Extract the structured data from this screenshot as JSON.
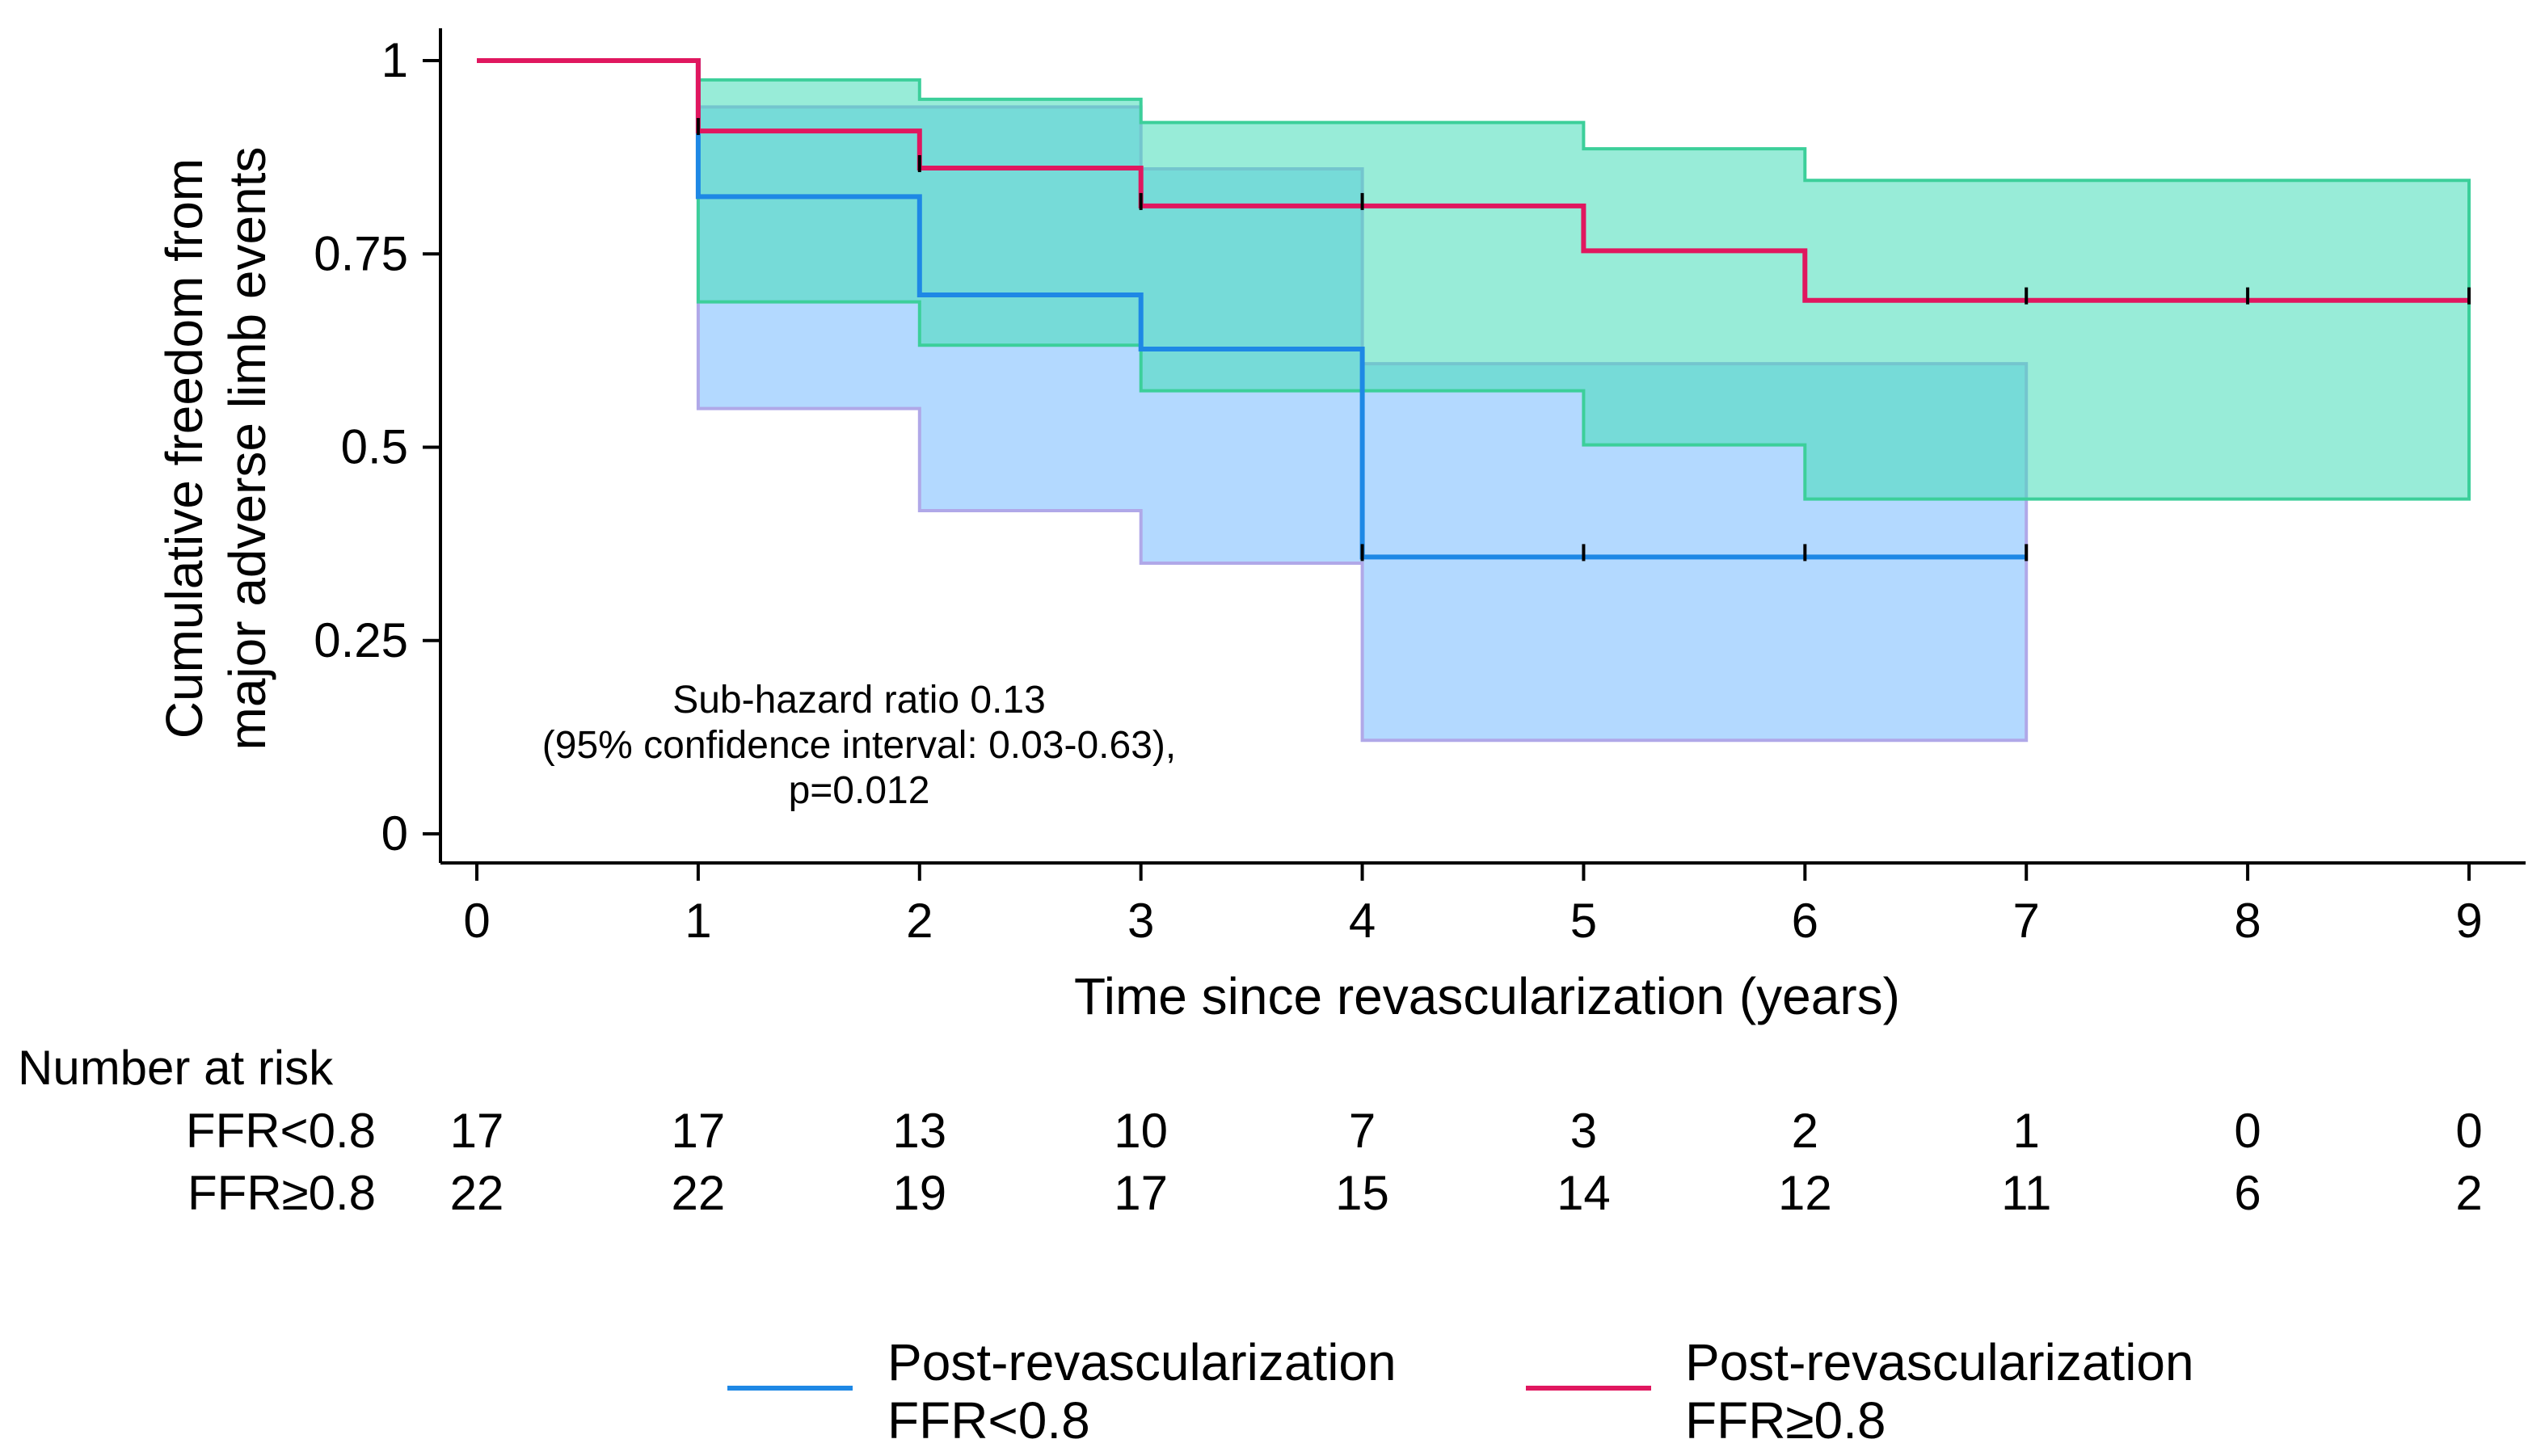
{
  "chart_data": {
    "type": "line",
    "subtype": "kaplan-meier step curves with confidence bands",
    "ylabel_lines": [
      "Cumulative freedom from",
      "major adverse limb events"
    ],
    "xlabel": "Time since revascularization (years)",
    "xlim": [
      0,
      9
    ],
    "ylim": [
      0,
      1
    ],
    "x_ticks": [
      0,
      1,
      2,
      3,
      4,
      5,
      6,
      7,
      8,
      9
    ],
    "x_tick_labels": [
      "0",
      "1",
      "2",
      "3",
      "4",
      "5",
      "6",
      "7",
      "8",
      "9"
    ],
    "y_ticks": [
      0,
      0.25,
      0.5,
      0.75,
      1
    ],
    "y_tick_labels": [
      "0",
      "0.25",
      "0.5",
      "0.75",
      "1"
    ],
    "annotation_lines": [
      "Sub-hazard ratio 0.13",
      "(95% confidence interval: 0.03-0.63),",
      "p=0.012"
    ],
    "series": [
      {
        "id": "low",
        "name": "Post-revascularization FFR<0.8",
        "legend_lines": [
          "Post-revascularization",
          "FFR<0.8"
        ],
        "color": "#1e88e5",
        "band_fill": "#99ccff",
        "band_edge": "#b0a8e8",
        "band_opacity": 0.75,
        "end_x": 7,
        "steps": [
          [
            0,
            1.0
          ],
          [
            1,
            0.824
          ],
          [
            2,
            0.697
          ],
          [
            3,
            0.627
          ],
          [
            4,
            0.358
          ]
        ],
        "ci_lower": [
          [
            1,
            0.55
          ],
          [
            2,
            0.418
          ],
          [
            3,
            0.35
          ],
          [
            4,
            0.121
          ]
        ],
        "ci_upper": [
          [
            1,
            0.94
          ],
          [
            2,
            0.94
          ],
          [
            3,
            0.86
          ],
          [
            4,
            0.608
          ]
        ],
        "censor_marks": [
          [
            4,
            0.358
          ],
          [
            5,
            0.358
          ],
          [
            6,
            0.358
          ],
          [
            7,
            0.358
          ]
        ]
      },
      {
        "id": "high",
        "name": "Post-revascularization FFR≥0.8",
        "legend_lines": [
          "Post-revascularization",
          "FFR≥0.8"
        ],
        "color": "#e0175f",
        "band_fill": "#44ddb8",
        "band_edge": "#3ccf9a",
        "band_opacity": 0.55,
        "end_x": 9,
        "steps": [
          [
            0,
            1.0
          ],
          [
            1,
            0.909
          ],
          [
            2,
            0.861
          ],
          [
            3,
            0.812
          ],
          [
            5,
            0.754
          ],
          [
            6,
            0.69
          ]
        ],
        "ci_lower": [
          [
            1,
            0.688
          ],
          [
            2,
            0.632
          ],
          [
            3,
            0.573
          ],
          [
            5,
            0.503
          ],
          [
            6,
            0.433
          ]
        ],
        "ci_upper": [
          [
            1,
            0.975
          ],
          [
            2,
            0.95
          ],
          [
            3,
            0.92
          ],
          [
            5,
            0.886
          ],
          [
            6,
            0.845
          ]
        ],
        "censor_marks": [
          [
            1,
            0.909
          ],
          [
            2,
            0.861
          ],
          [
            3,
            0.812
          ],
          [
            4,
            0.812
          ],
          [
            7,
            0.69
          ],
          [
            8,
            0.69
          ],
          [
            9,
            0.69
          ]
        ]
      }
    ],
    "risk_table": {
      "title": "Number at risk",
      "rows": [
        {
          "label": "FFR<0.8",
          "values": [
            "17",
            "17",
            "13",
            "10",
            "7",
            "3",
            "2",
            "1",
            "0",
            "0"
          ]
        },
        {
          "label": "FFR≥0.8",
          "values": [
            "22",
            "22",
            "19",
            "17",
            "15",
            "14",
            "12",
            "11",
            "6",
            "2"
          ]
        }
      ]
    }
  }
}
